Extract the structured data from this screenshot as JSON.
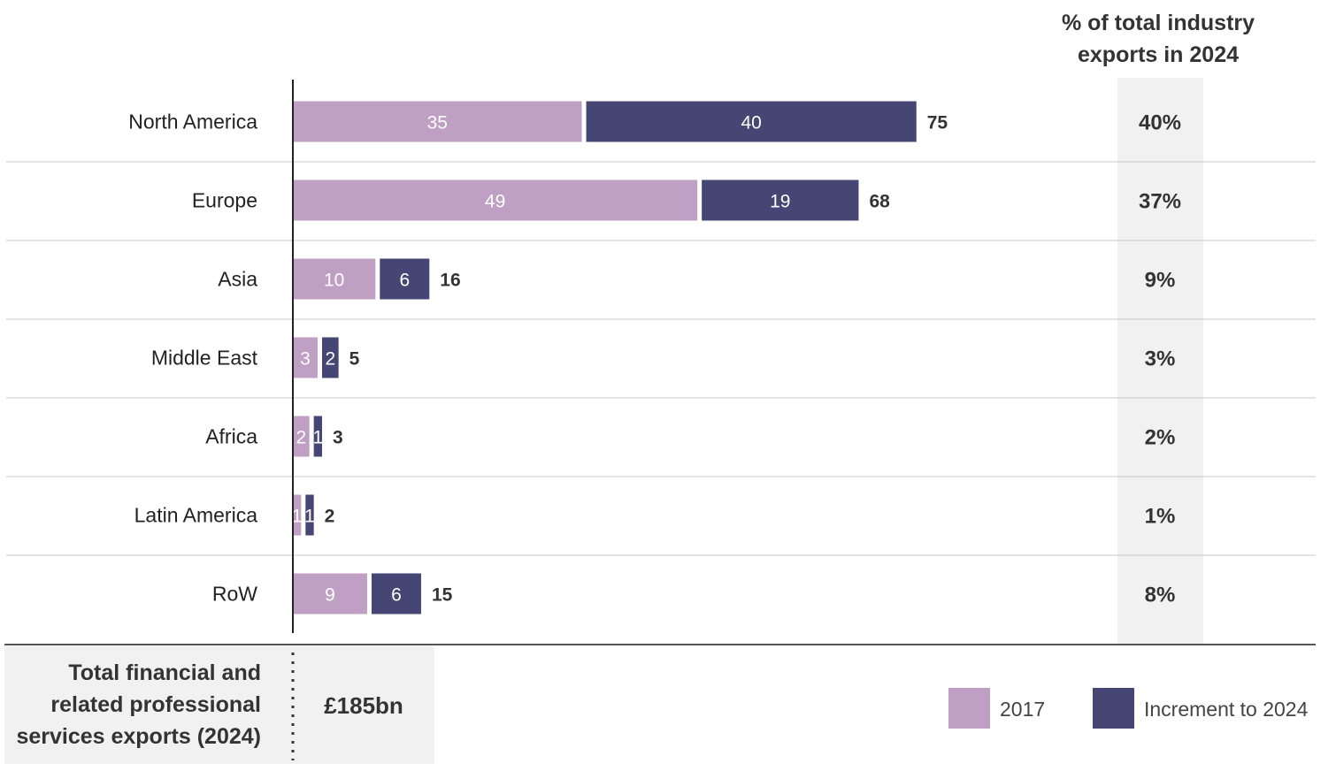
{
  "colors": {
    "base": "#bf9fc3",
    "increment": "#454674",
    "pct_column_bg": "#f1f1f1",
    "footer_bg": "#f1f1f1"
  },
  "pct_header": [
    "% of total industry",
    "exports in 2024"
  ],
  "footer": {
    "title_lines": [
      "Total financial and",
      "related professional",
      "services exports (2024)"
    ],
    "total": "£185bn"
  },
  "legend": [
    {
      "label": "2017",
      "color": "#bf9fc3"
    },
    {
      "label": "Increment to 2024",
      "color": "#454674"
    }
  ],
  "chart_data": {
    "type": "bar",
    "orientation": "horizontal",
    "stacked": true,
    "categories": [
      "North America",
      "Europe",
      "Asia",
      "Middle East",
      "Africa",
      "Latin America",
      "RoW"
    ],
    "series": [
      {
        "name": "2017",
        "values": [
          35,
          49,
          10,
          3,
          2,
          1,
          9
        ]
      },
      {
        "name": "Increment to 2024",
        "values": [
          40,
          19,
          6,
          2,
          1,
          1,
          6
        ]
      }
    ],
    "totals": [
      75,
      68,
      16,
      5,
      3,
      2,
      15
    ],
    "pct_of_total_2024": [
      "40%",
      "37%",
      "9%",
      "3%",
      "2%",
      "1%",
      "8%"
    ],
    "xlim": [
      0,
      75
    ]
  }
}
